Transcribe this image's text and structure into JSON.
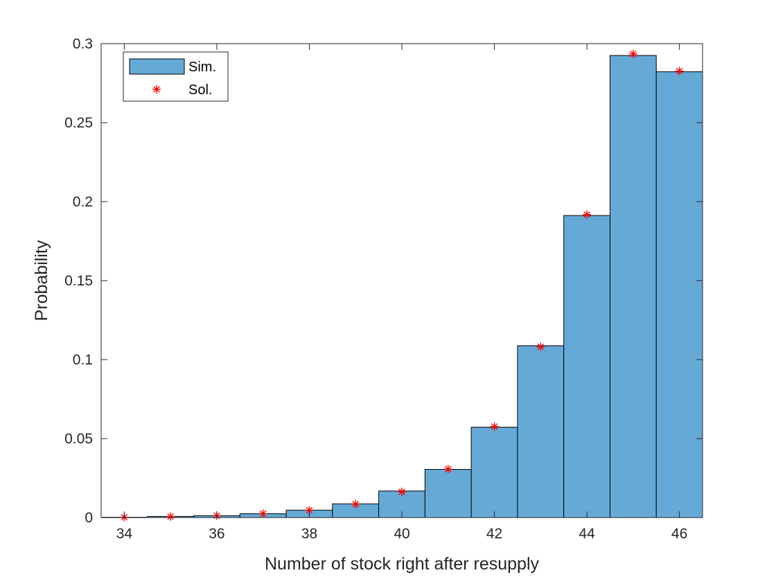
{
  "chart_data": {
    "type": "bar",
    "title": "",
    "xlabel": "Number of stock right after resupply",
    "ylabel": "Probability",
    "xlim": [
      33.5,
      46.5
    ],
    "ylim": [
      0,
      0.3
    ],
    "x_ticks": [
      34,
      36,
      38,
      40,
      42,
      44,
      46
    ],
    "x_tick_labels": [
      "34",
      "36",
      "38",
      "40",
      "42",
      "44",
      "46"
    ],
    "y_ticks": [
      0,
      0.05,
      0.1,
      0.15,
      0.2,
      0.25,
      0.3
    ],
    "y_tick_labels": [
      "0",
      "0.05",
      "0.1",
      "0.15",
      "0.2",
      "0.25",
      "0.3"
    ],
    "grid": false,
    "legend_position": "top-left",
    "colors": {
      "bar_fill": "#65a9d7",
      "bar_edge": "#000000",
      "marker": "#ff0000",
      "axis": "#262626"
    },
    "series": [
      {
        "name": "Sim.",
        "kind": "histogram-bar",
        "x": [
          34,
          35,
          36,
          37,
          38,
          39,
          40,
          41,
          42,
          43,
          44,
          45,
          46
        ],
        "values": [
          0.0002,
          0.0007,
          0.0012,
          0.0024,
          0.0047,
          0.0087,
          0.0168,
          0.0305,
          0.0572,
          0.1088,
          0.1912,
          0.2925,
          0.2822
        ]
      },
      {
        "name": "Sol.",
        "kind": "marker",
        "x": [
          34,
          35,
          36,
          37,
          38,
          39,
          40,
          41,
          42,
          43,
          44,
          45,
          46
        ],
        "values": [
          0.0002,
          0.0006,
          0.0012,
          0.0025,
          0.0046,
          0.0085,
          0.0163,
          0.0307,
          0.0576,
          0.1081,
          0.1918,
          0.2935,
          0.2826
        ]
      }
    ]
  }
}
